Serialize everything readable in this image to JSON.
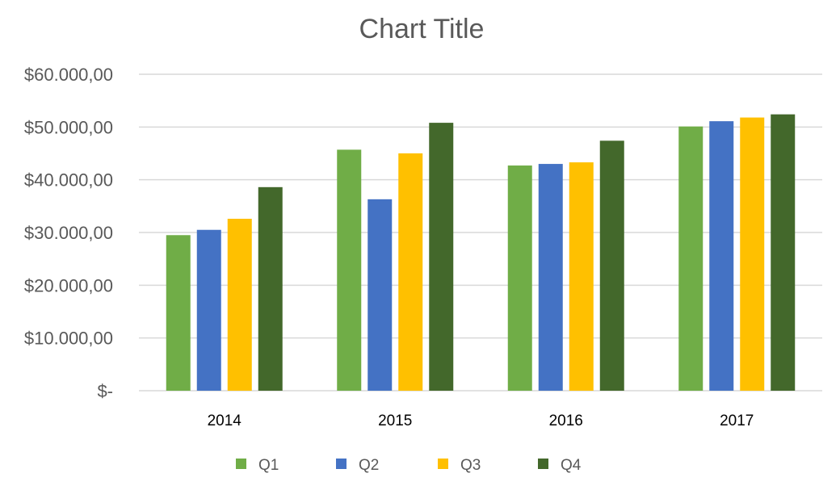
{
  "chart_data": {
    "type": "bar",
    "title": "Chart Title",
    "categories": [
      "2014",
      "2015",
      "2016",
      "2017"
    ],
    "series": [
      {
        "name": "Q1",
        "color": "#70ad47",
        "values": [
          29500,
          45700,
          42700,
          50100
        ]
      },
      {
        "name": "Q2",
        "color": "#4472c4",
        "values": [
          30500,
          36300,
          43000,
          51100
        ]
      },
      {
        "name": "Q3",
        "color": "#ffc000",
        "values": [
          32600,
          45000,
          43300,
          51800
        ]
      },
      {
        "name": "Q4",
        "color": "#43682b",
        "values": [
          38600,
          50800,
          47400,
          52400
        ]
      }
    ],
    "ylim": [
      0,
      60000
    ],
    "yticks": [
      0,
      10000,
      20000,
      30000,
      40000,
      50000,
      60000
    ],
    "ytick_labels": [
      "$-",
      "$10.000,00",
      "$20.000,00",
      "$30.000,00",
      "$40.000,00",
      "$50.000,00",
      "$60.000,00"
    ],
    "grid": true,
    "legend_position": "bottom"
  }
}
